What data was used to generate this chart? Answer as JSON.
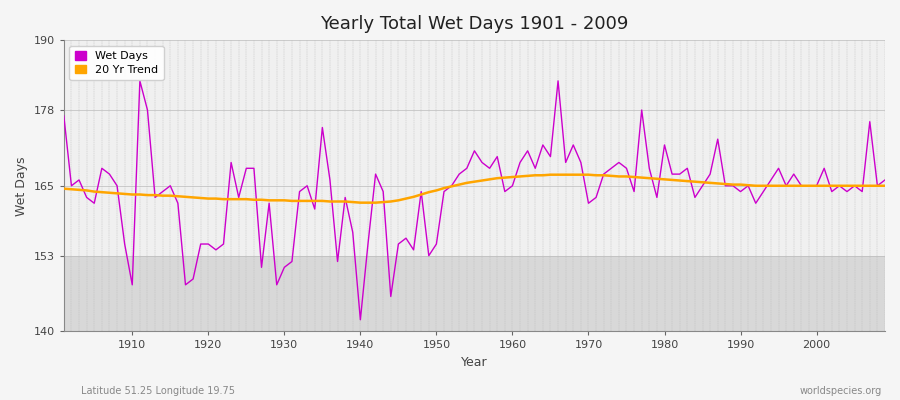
{
  "title": "Yearly Total Wet Days 1901 - 2009",
  "xlabel": "Year",
  "ylabel": "Wet Days",
  "lat_lon_label": "Latitude 51.25 Longitude 19.75",
  "watermark": "worldspecies.org",
  "wet_days_color": "#cc00cc",
  "trend_color": "#ffa500",
  "bg_upper": "#f0f0f0",
  "bg_lower": "#d8d8d8",
  "fig_bg": "#f5f5f5",
  "ylim": [
    140,
    190
  ],
  "xlim": [
    1901,
    2009
  ],
  "yticks": [
    140,
    153,
    165,
    178,
    190
  ],
  "xticks": [
    1910,
    1920,
    1930,
    1940,
    1950,
    1960,
    1970,
    1980,
    1990,
    2000
  ],
  "lower_band_threshold": 153,
  "years": [
    1901,
    1902,
    1903,
    1904,
    1905,
    1906,
    1907,
    1908,
    1909,
    1910,
    1911,
    1912,
    1913,
    1914,
    1915,
    1916,
    1917,
    1918,
    1919,
    1920,
    1921,
    1922,
    1923,
    1924,
    1925,
    1926,
    1927,
    1928,
    1929,
    1930,
    1931,
    1932,
    1933,
    1934,
    1935,
    1936,
    1937,
    1938,
    1939,
    1940,
    1941,
    1942,
    1943,
    1944,
    1945,
    1946,
    1947,
    1948,
    1949,
    1950,
    1951,
    1952,
    1953,
    1954,
    1955,
    1956,
    1957,
    1958,
    1959,
    1960,
    1961,
    1962,
    1963,
    1964,
    1965,
    1966,
    1967,
    1968,
    1969,
    1970,
    1971,
    1972,
    1973,
    1974,
    1975,
    1976,
    1977,
    1978,
    1979,
    1980,
    1981,
    1982,
    1983,
    1984,
    1985,
    1986,
    1987,
    1988,
    1989,
    1990,
    1991,
    1992,
    1993,
    1994,
    1995,
    1996,
    1997,
    1998,
    1999,
    2000,
    2001,
    2002,
    2003,
    2004,
    2005,
    2006,
    2007,
    2008,
    2009
  ],
  "wet_days": [
    177,
    165,
    166,
    163,
    162,
    168,
    167,
    165,
    155,
    148,
    183,
    178,
    163,
    164,
    165,
    162,
    148,
    149,
    155,
    155,
    154,
    155,
    169,
    163,
    168,
    168,
    151,
    162,
    148,
    151,
    152,
    164,
    165,
    161,
    175,
    166,
    152,
    163,
    157,
    142,
    155,
    167,
    164,
    146,
    155,
    156,
    154,
    164,
    153,
    155,
    164,
    165,
    167,
    168,
    171,
    169,
    168,
    170,
    164,
    165,
    169,
    171,
    168,
    172,
    170,
    183,
    169,
    172,
    169,
    162,
    163,
    167,
    168,
    169,
    168,
    164,
    178,
    168,
    163,
    172,
    167,
    167,
    168,
    163,
    165,
    167,
    173,
    165,
    165,
    164,
    165,
    162,
    164,
    166,
    168,
    165,
    167,
    165,
    165,
    165,
    168,
    164,
    165,
    164,
    165,
    164,
    176,
    165,
    166
  ],
  "trend": [
    164.5,
    164.4,
    164.3,
    164.2,
    164.0,
    163.9,
    163.8,
    163.7,
    163.6,
    163.5,
    163.5,
    163.4,
    163.4,
    163.3,
    163.3,
    163.2,
    163.1,
    163.0,
    162.9,
    162.8,
    162.8,
    162.7,
    162.7,
    162.7,
    162.7,
    162.6,
    162.6,
    162.5,
    162.5,
    162.5,
    162.4,
    162.4,
    162.4,
    162.4,
    162.4,
    162.3,
    162.3,
    162.3,
    162.2,
    162.1,
    162.1,
    162.1,
    162.2,
    162.3,
    162.5,
    162.8,
    163.1,
    163.5,
    163.9,
    164.2,
    164.6,
    164.9,
    165.2,
    165.5,
    165.7,
    165.9,
    166.1,
    166.3,
    166.4,
    166.5,
    166.6,
    166.7,
    166.8,
    166.8,
    166.9,
    166.9,
    166.9,
    166.9,
    166.9,
    166.9,
    166.8,
    166.8,
    166.7,
    166.6,
    166.6,
    166.5,
    166.4,
    166.3,
    166.2,
    166.1,
    166.0,
    165.9,
    165.8,
    165.7,
    165.6,
    165.5,
    165.4,
    165.3,
    165.2,
    165.2,
    165.1,
    165.0,
    165.0,
    165.0,
    165.0,
    165.0,
    165.0,
    165.0,
    165.0,
    165.0,
    165.0,
    165.0,
    165.0,
    165.0,
    165.0,
    165.0,
    165.0,
    165.0,
    165.0
  ]
}
